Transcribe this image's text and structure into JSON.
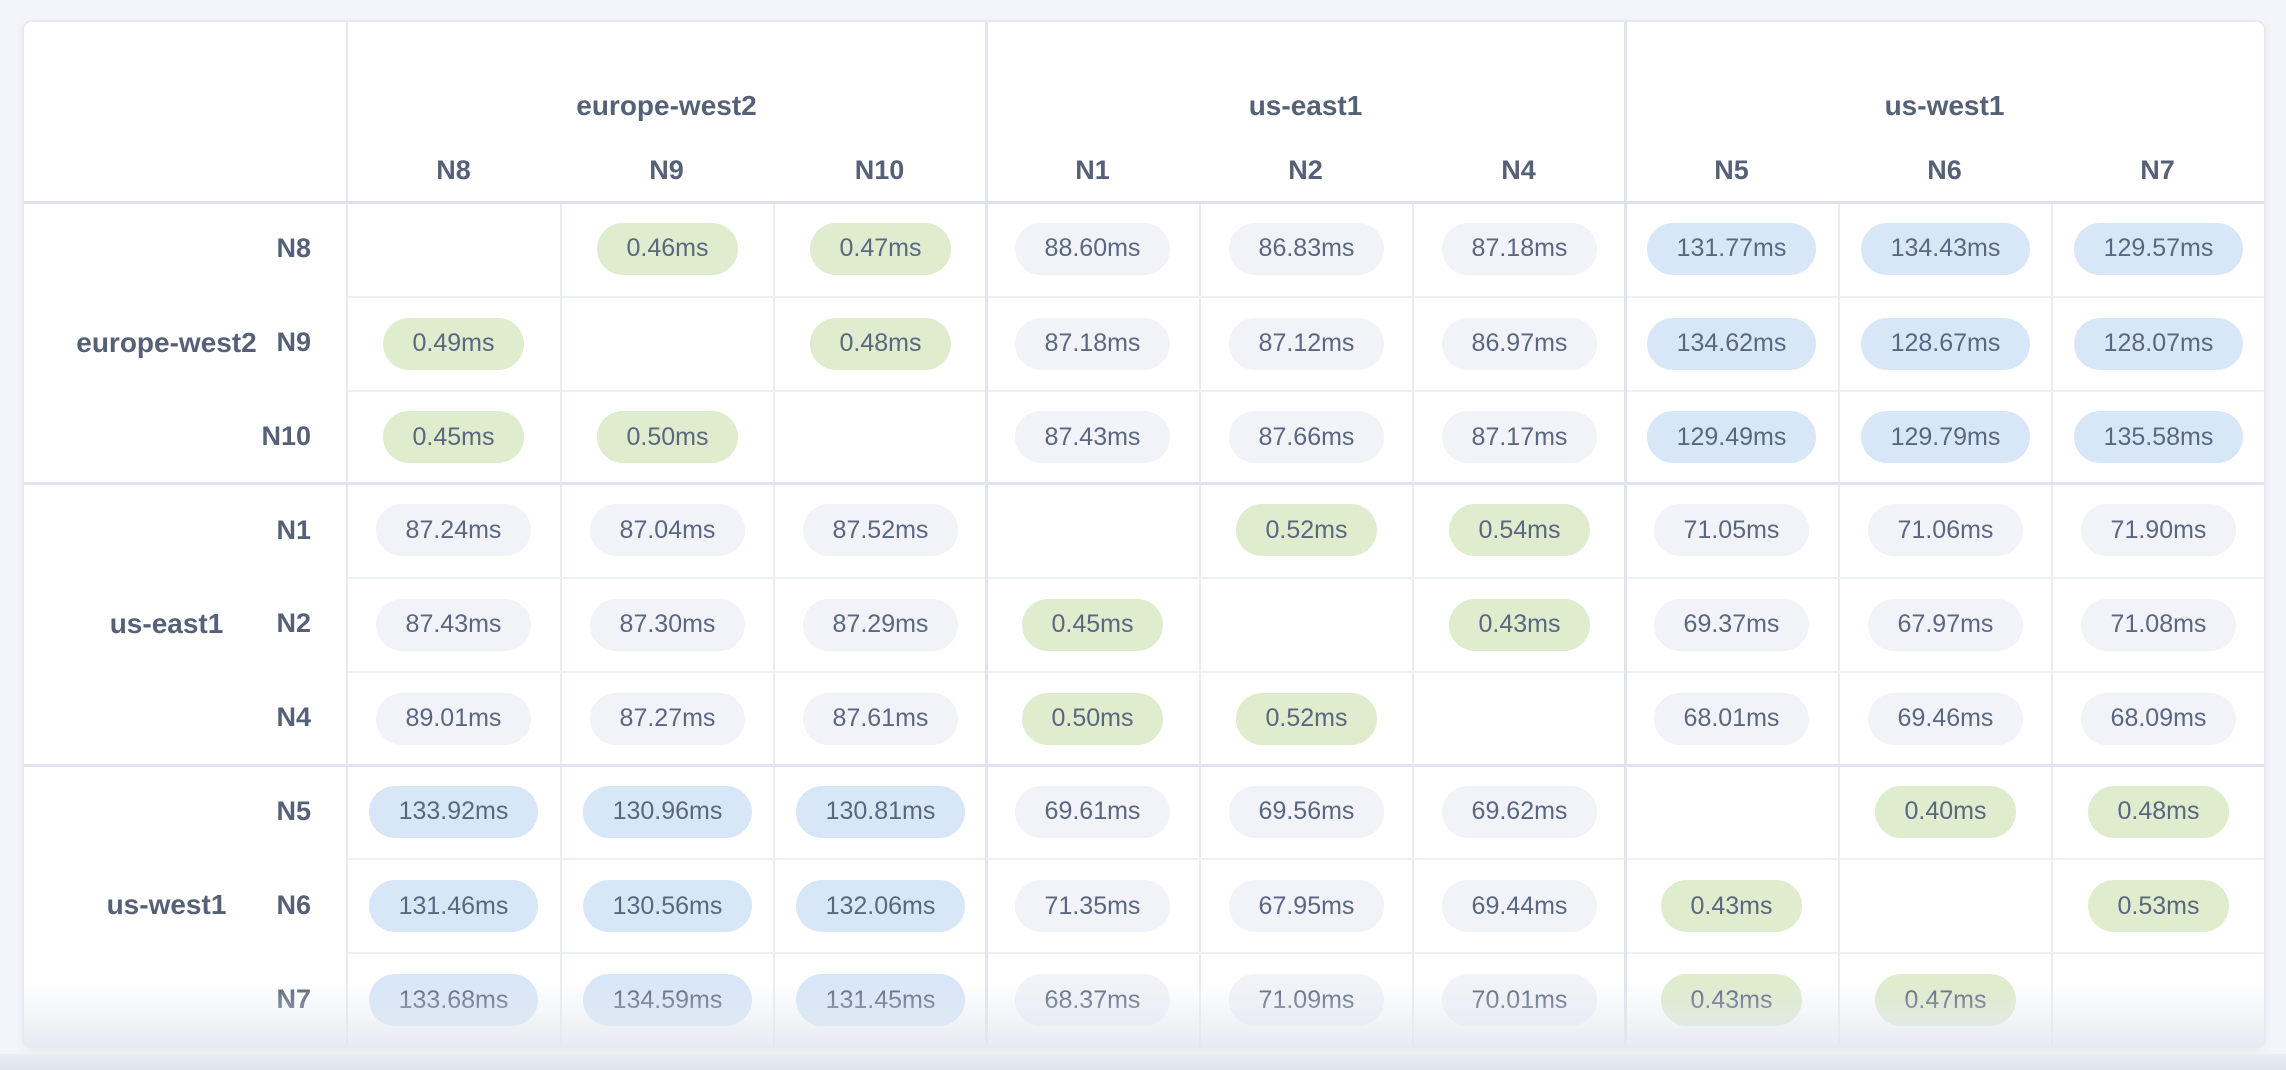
{
  "colors": {
    "page_background": "#f4f5fa",
    "card_background": "#ffffff",
    "card_border": "#e6e9f1",
    "thin_grid_line": "#e9ecf2",
    "group_grid_line": "#dfe4ee",
    "header_text": "#566177",
    "value_text": "#5b6780",
    "pill_green": "#dfeccd",
    "pill_blue": "#d8e7f8",
    "pill_gray": "#f1f3f8"
  },
  "chart_data": {
    "type": "heatmap",
    "unit": "ms",
    "value_format": "two_decimals_with_ms_suffix",
    "thresholds": {
      "green_below": 1,
      "blue_at_or_above": 100,
      "gray": "otherwise"
    },
    "col_groups": [
      {
        "region": "europe-west2",
        "nodes": [
          "N8",
          "N9",
          "N10"
        ]
      },
      {
        "region": "us-east1",
        "nodes": [
          "N1",
          "N2",
          "N4"
        ]
      },
      {
        "region": "us-west1",
        "nodes": [
          "N5",
          "N6",
          "N7"
        ]
      }
    ],
    "row_groups": [
      {
        "region": "europe-west2",
        "nodes": [
          "N8",
          "N9",
          "N10"
        ]
      },
      {
        "region": "us-east1",
        "nodes": [
          "N1",
          "N2",
          "N4"
        ]
      },
      {
        "region": "us-west1",
        "nodes": [
          "N5",
          "N6",
          "N7"
        ]
      }
    ],
    "rows": [
      {
        "region": "europe-west2",
        "node": "N8",
        "values": [
          null,
          0.46,
          0.47,
          88.6,
          86.83,
          87.18,
          131.77,
          134.43,
          129.57
        ]
      },
      {
        "region": "europe-west2",
        "node": "N9",
        "values": [
          0.49,
          null,
          0.48,
          87.18,
          87.12,
          86.97,
          134.62,
          128.67,
          128.07
        ]
      },
      {
        "region": "europe-west2",
        "node": "N10",
        "values": [
          0.45,
          0.5,
          null,
          87.43,
          87.66,
          87.17,
          129.49,
          129.79,
          135.58
        ]
      },
      {
        "region": "us-east1",
        "node": "N1",
        "values": [
          87.24,
          87.04,
          87.52,
          null,
          0.52,
          0.54,
          71.05,
          71.06,
          71.9
        ]
      },
      {
        "region": "us-east1",
        "node": "N2",
        "values": [
          87.43,
          87.3,
          87.29,
          0.45,
          null,
          0.43,
          69.37,
          67.97,
          71.08
        ]
      },
      {
        "region": "us-east1",
        "node": "N4",
        "values": [
          89.01,
          87.27,
          87.61,
          0.5,
          0.52,
          null,
          68.01,
          69.46,
          68.09
        ]
      },
      {
        "region": "us-west1",
        "node": "N5",
        "values": [
          133.92,
          130.96,
          130.81,
          69.61,
          69.56,
          69.62,
          null,
          0.4,
          0.48
        ]
      },
      {
        "region": "us-west1",
        "node": "N6",
        "values": [
          131.46,
          130.56,
          132.06,
          71.35,
          67.95,
          69.44,
          0.43,
          null,
          0.53
        ]
      },
      {
        "region": "us-west1",
        "node": "N7",
        "values": [
          133.68,
          134.59,
          131.45,
          68.37,
          71.09,
          70.01,
          0.43,
          0.47,
          null
        ]
      }
    ]
  }
}
